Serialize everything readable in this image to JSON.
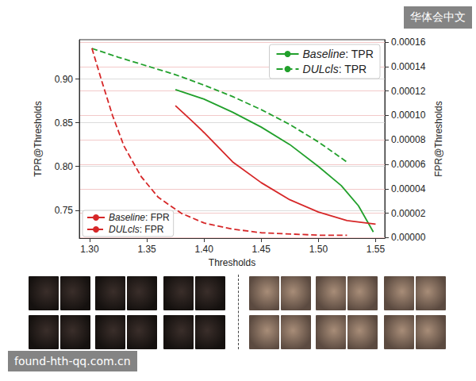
{
  "chart_data": {
    "type": "line",
    "x_label": "Thresholds",
    "y_label": "TPR@Thresholds",
    "y2_label": "FPR@Thresholds",
    "xlim": [
      1.291,
      1.558
    ],
    "xticks": [
      {
        "value": 1.3,
        "label": "1.30"
      },
      {
        "value": 1.35,
        "label": "1.35"
      },
      {
        "value": 1.4,
        "label": "1.40"
      },
      {
        "value": 1.45,
        "label": "1.45"
      },
      {
        "value": 1.5,
        "label": "1.50"
      },
      {
        "value": 1.55,
        "label": "1.55"
      }
    ],
    "ylim": [
      0.718,
      0.945
    ],
    "yticks": [
      0.75,
      {
        "value": 0.8,
        "label": "0.80"
      },
      0.85,
      {
        "value": 0.9,
        "label": "0.90"
      }
    ],
    "y2lim": [
      -4e-07,
      0.000162
    ],
    "y2ticks": [
      {
        "value": 0,
        "label": "0.00000"
      },
      {
        "value": 2e-05,
        "label": "0.00002"
      },
      {
        "value": 4e-05,
        "label": "0.00004"
      },
      {
        "value": 6e-05,
        "label": "0.00006"
      },
      {
        "value": 8e-05,
        "label": "0.00008"
      },
      {
        "value": 0.0001,
        "label": "0.00010"
      },
      {
        "value": 0.00012,
        "label": "0.00012"
      },
      {
        "value": 0.00014,
        "label": "0.00014"
      },
      {
        "value": 0.00016,
        "label": "0.00016"
      }
    ],
    "grid": true,
    "legend": [
      "upper right",
      "lower left"
    ],
    "series": [
      {
        "name": "Baseline: TPR",
        "color": "#22a02c",
        "line_style": "solid",
        "x": [
          1.375,
          1.4,
          1.425,
          1.45,
          1.475,
          1.5,
          1.52,
          1.535,
          1.548
        ],
        "values": [
          0.888,
          0.877,
          0.862,
          0.845,
          0.825,
          0.8,
          0.778,
          0.755,
          0.725
        ]
      },
      {
        "name": "DULcls: TPR",
        "color": "#22a02c",
        "line_style": "dashed",
        "x": [
          1.302,
          1.325,
          1.35,
          1.375,
          1.4,
          1.425,
          1.45,
          1.475,
          1.5,
          1.525
        ],
        "values": [
          0.935,
          0.925,
          0.915,
          0.905,
          0.893,
          0.88,
          0.865,
          0.848,
          0.828,
          0.805
        ]
      },
      {
        "name": "Baseline: FPR",
        "color": "#d62728",
        "line_style": "solid",
        "axis": "y2",
        "x": [
          1.375,
          1.39,
          1.4,
          1.425,
          1.45,
          1.475,
          1.5,
          1.525,
          1.55
        ],
        "values": [
          0.000108,
          9.5e-05,
          8.6e-05,
          6.2e-05,
          4.5e-05,
          3.1e-05,
          2.1e-05,
          1.4e-05,
          1.1e-05
        ]
      },
      {
        "name": "DULcls: FPR",
        "color": "#d62728",
        "line_style": "dashed",
        "axis": "y2",
        "x": [
          1.302,
          1.31,
          1.32,
          1.33,
          1.345,
          1.36,
          1.38,
          1.4,
          1.425,
          1.45,
          1.5,
          1.525
        ],
        "values": [
          0.000155,
          0.00013,
          0.0001,
          7.5e-05,
          5e-05,
          3.3e-05,
          2e-05,
          1.2e-05,
          7e-06,
          4e-06,
          2e-06,
          2e-06
        ]
      }
    ]
  },
  "watermarks": [
    "华体会中文",
    "found-hth-qq.com.cn"
  ]
}
